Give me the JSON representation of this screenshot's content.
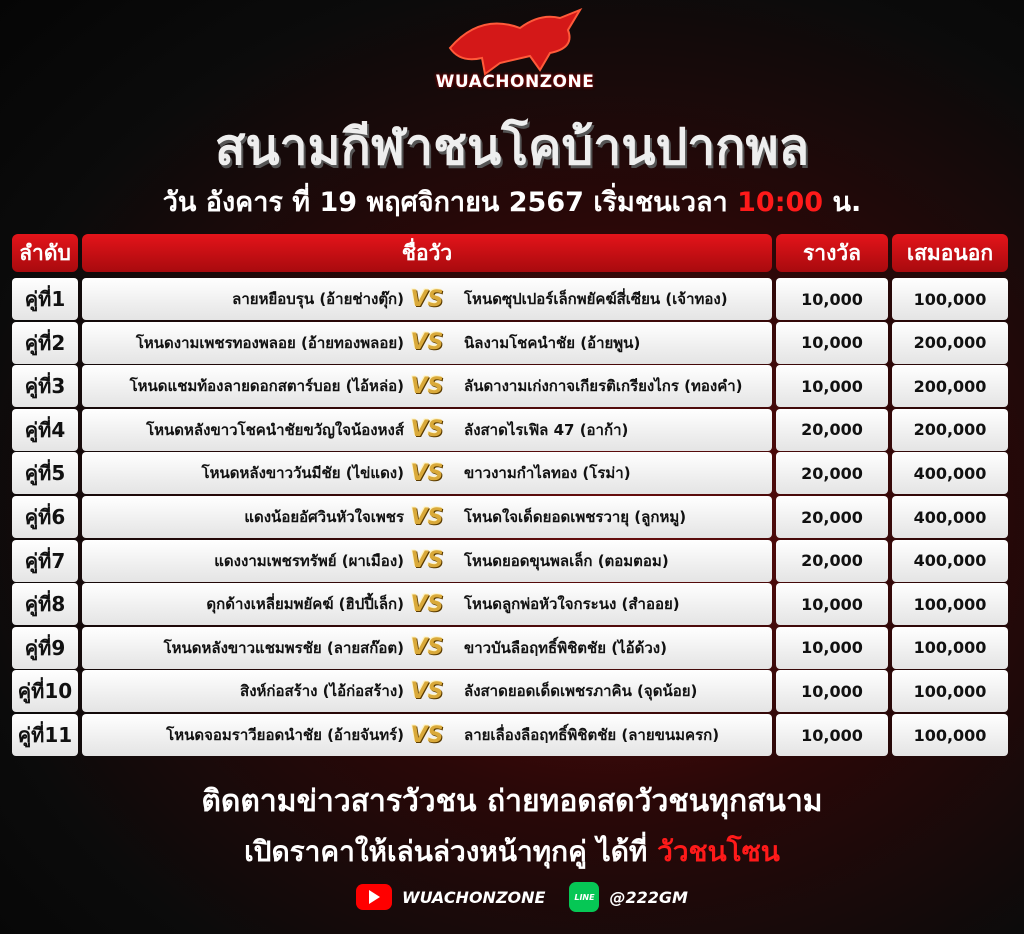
{
  "brand": {
    "logo_text": "WUACHONZONE"
  },
  "title": "สนามกีฬาชนโคบ้านปากพล",
  "date": {
    "text": "วัน อังคาร ที่ 19 พฤศจิกายน 2567 เริ่มชนเวลา",
    "time": "10:00",
    "suffix": "น."
  },
  "table": {
    "headers": {
      "rank": "ลำดับ",
      "names": "ชื่อวัว",
      "prize": "รางวัล",
      "draw": "เสมอนอก"
    },
    "vs_label": "VS",
    "rows": [
      {
        "rank": "คู่ที่1",
        "home": "ลายหยือบรุน (อ้ายช่างตุ๊ก)",
        "away": "โหนดซุปเปอร์เล็กพยัคฆ์สี่เซียน (เจ้าทอง)",
        "prize": "10,000",
        "draw": "100,000"
      },
      {
        "rank": "คู่ที่2",
        "home": "โหนดงามเพชรทองพลอย (อ้ายทองพลอย)",
        "away": "นิลงามโชคนำชัย (อ้ายพูน)",
        "prize": "10,000",
        "draw": "200,000"
      },
      {
        "rank": "คู่ที่3",
        "home": "โหนดแชมท้องลายดอกสตาร์บอย (ไอ้หล่อ)",
        "away": "ลันดางามเก่งกาจเกียรติเกรียงไกร (ทองคำ)",
        "prize": "10,000",
        "draw": "200,000"
      },
      {
        "rank": "คู่ที่4",
        "home": "โหนดหลังขาวโชคนำชัยขวัญใจน้องหงส์",
        "away": "ลังสาดไรเฟิล 47 (อาก้า)",
        "prize": "20,000",
        "draw": "200,000"
      },
      {
        "rank": "คู่ที่5",
        "home": "โหนดหลังขาววันมีชัย (ไข่แดง)",
        "away": "ขาวงามกำไลทอง (โรม่า)",
        "prize": "20,000",
        "draw": "400,000"
      },
      {
        "rank": "คู่ที่6",
        "home": "แดงน้อยอัศวินหัวใจเพชร",
        "away": "โหนดใจเด็ดยอดเพชรวายุ (ลูกหมู)",
        "prize": "20,000",
        "draw": "400,000"
      },
      {
        "rank": "คู่ที่7",
        "home": "แดงงามเพชรทรัพย์ (ผาเมือง)",
        "away": "โหนดยอดขุนพลเล็ก (ตอมตอม)",
        "prize": "20,000",
        "draw": "400,000"
      },
      {
        "rank": "คู่ที่8",
        "home": "ดุกด้างเหลี่ยมพยัคฆ์ (ฮิปปี้เล็ก)",
        "away": "โหนดลูกพ่อหัวใจกระนง (สำออย)",
        "prize": "10,000",
        "draw": "100,000"
      },
      {
        "rank": "คู่ที่9",
        "home": "โหนดหลังขาวแชมพรชัย (ลายสก๊อต)",
        "away": "ขาวบันลือฤทธิ์พิชิตชัย (ไอ้ด้วง)",
        "prize": "10,000",
        "draw": "100,000"
      },
      {
        "rank": "คู่ที่10",
        "home": "สิงห์ก่อสร้าง (ไอ้ก่อสร้าง)",
        "away": "ลังสาดยอดเด็ดเพชรภาคิน (จุดน้อย)",
        "prize": "10,000",
        "draw": "100,000"
      },
      {
        "rank": "คู่ที่11",
        "home": "โหนดจอมราวียอดนำชัย (อ้ายจันทร์)",
        "away": "ลายเลื่องลือฤทธิ์พิชิตชัย (ลายขนมครก)",
        "prize": "10,000",
        "draw": "100,000"
      }
    ]
  },
  "footer": {
    "line1": "ติดตามข่าวสารวัวชน ถ่ายทอดสดวัวชนทุกสนาม",
    "line2": "เปิดราคาให้เล่นล่วงหน้าทุกคู่ ได้ที่",
    "line2_highlight": "วัวชนโซน",
    "youtube": "WUACHONZONE",
    "line_icon_text": "LINE",
    "line_id": "@222GM"
  },
  "colors": {
    "accent": "#e4141a",
    "highlight": "#ff1a1a",
    "vs_gold": "#d9a93a"
  }
}
